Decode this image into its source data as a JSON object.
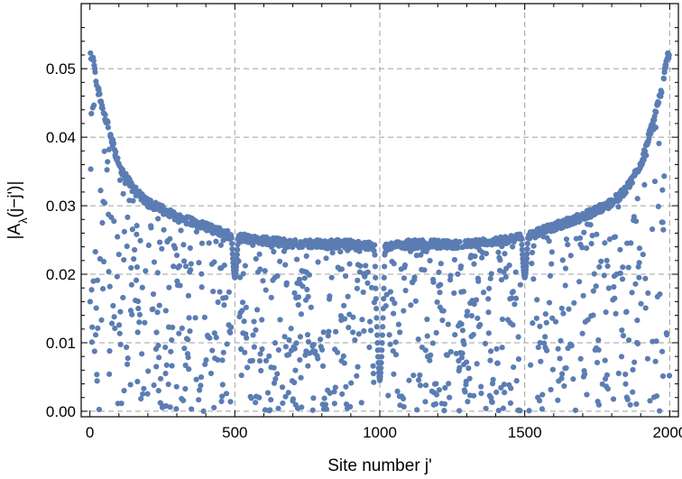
{
  "chart_data": {
    "type": "scatter",
    "xlabel": "Site number j'",
    "ylabel_parts": {
      "prefix": "|A",
      "subscript": "λ",
      "suffix": "(j−j')|"
    },
    "xlim": [
      -30,
      2030
    ],
    "ylim": [
      -0.0008,
      0.0595
    ],
    "x_ticks": [
      0,
      500,
      1000,
      1500,
      2000
    ],
    "x_tick_labels": [
      "0",
      "500",
      "1000",
      "1500",
      "2000"
    ],
    "y_ticks": [
      0.0,
      0.01,
      0.02,
      0.03,
      0.04,
      0.05
    ],
    "y_tick_labels": [
      "0.00",
      "0.01",
      "0.02",
      "0.03",
      "0.04",
      "0.05"
    ],
    "grid": true,
    "marker_color": "#5b7db3",
    "series": [
      {
        "envelope_points": [
          {
            "x": 10,
            "y": 0.0525
          },
          {
            "x": 25,
            "y": 0.048
          },
          {
            "x": 50,
            "y": 0.044
          },
          {
            "x": 100,
            "y": 0.0365
          },
          {
            "x": 150,
            "y": 0.033
          },
          {
            "x": 200,
            "y": 0.031
          },
          {
            "x": 300,
            "y": 0.029
          },
          {
            "x": 400,
            "y": 0.0275
          },
          {
            "x": 500,
            "y": 0.026
          },
          {
            "x": 600,
            "y": 0.0255
          },
          {
            "x": 700,
            "y": 0.025
          },
          {
            "x": 800,
            "y": 0.025
          },
          {
            "x": 900,
            "y": 0.025
          },
          {
            "x": 1000,
            "y": 0.0245
          },
          {
            "x": 1100,
            "y": 0.025
          },
          {
            "x": 1200,
            "y": 0.025
          },
          {
            "x": 1300,
            "y": 0.025
          },
          {
            "x": 1400,
            "y": 0.0255
          },
          {
            "x": 1500,
            "y": 0.026
          },
          {
            "x": 1600,
            "y": 0.0275
          },
          {
            "x": 1700,
            "y": 0.029
          },
          {
            "x": 1800,
            "y": 0.031
          },
          {
            "x": 1850,
            "y": 0.033
          },
          {
            "x": 1900,
            "y": 0.0365
          },
          {
            "x": 1950,
            "y": 0.044
          },
          {
            "x": 1975,
            "y": 0.048
          },
          {
            "x": 1990,
            "y": 0.0525
          }
        ],
        "dips": [
          {
            "x": 500,
            "min": 0.0195,
            "lower_min": 0.006
          },
          {
            "x": 1000,
            "min": 0.0045
          },
          {
            "x": 1500,
            "min": 0.0195,
            "lower_min": 0.006
          }
        ],
        "n_points": 1999,
        "x_range": [
          1,
          1999
        ]
      }
    ]
  }
}
